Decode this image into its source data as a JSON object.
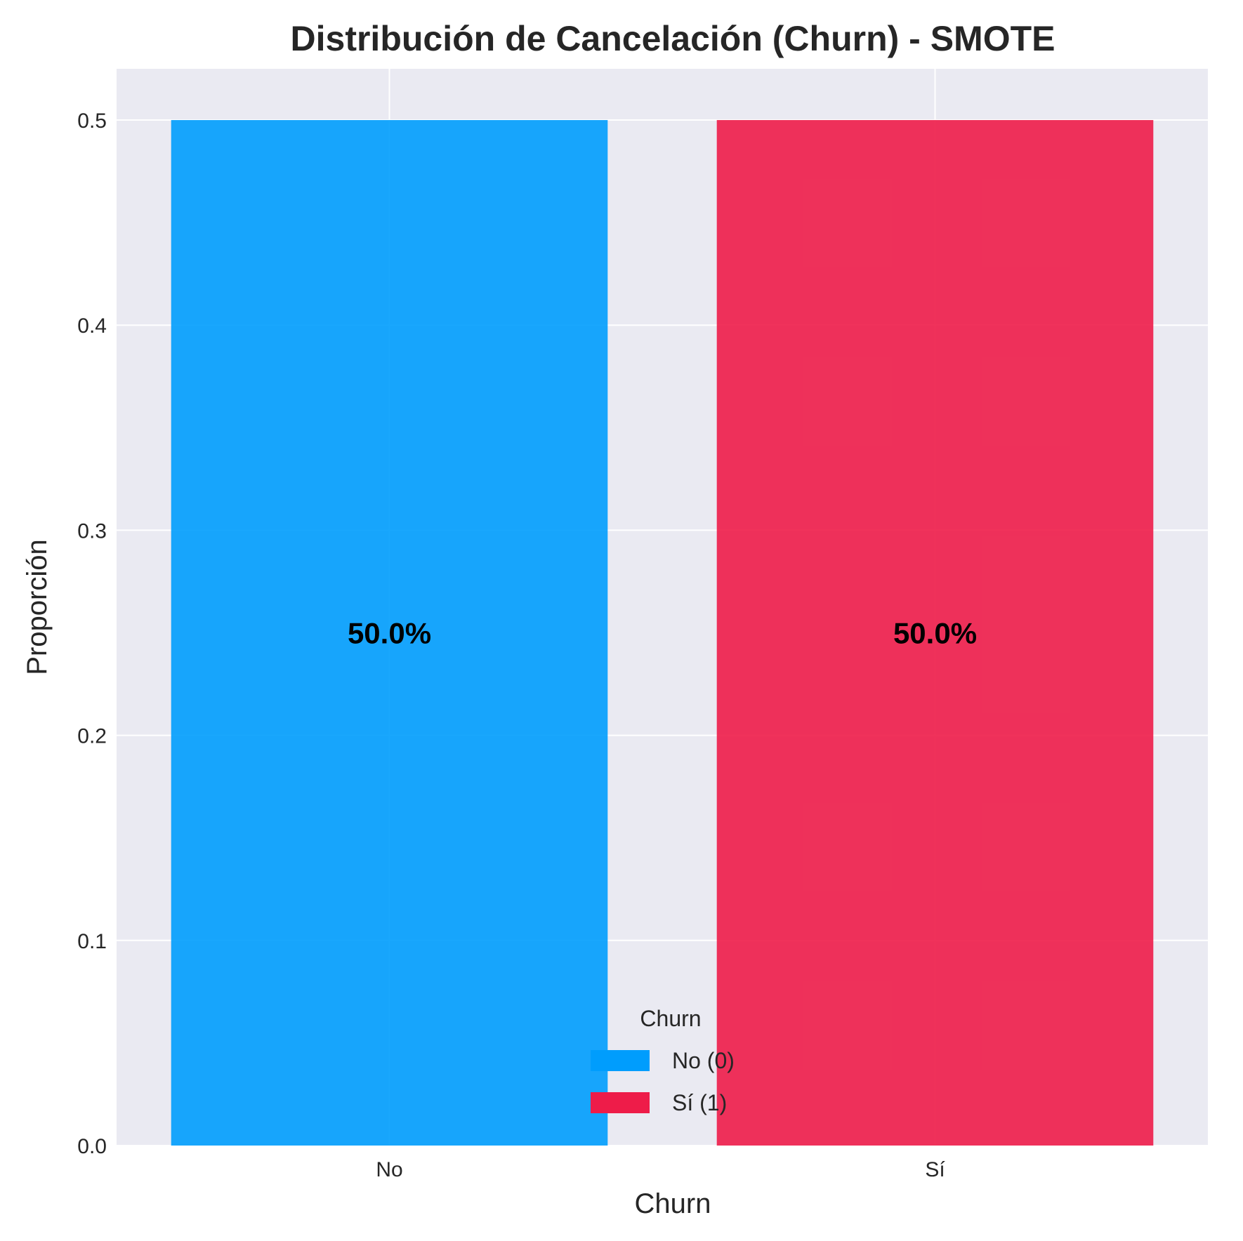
{
  "chart_data": {
    "type": "bar",
    "title": "Distribución de Cancelación (Churn) - SMOTE",
    "xlabel": "Churn",
    "ylabel": "Proporción",
    "categories": [
      "No",
      "Sí"
    ],
    "values": [
      0.5,
      0.5
    ],
    "data_labels": [
      "50.0%",
      "50.0%"
    ],
    "colors": [
      "#009dfd",
      "#ee1c49"
    ],
    "ylim": [
      0,
      0.525
    ],
    "yticks": [
      0.0,
      0.1,
      0.2,
      0.3,
      0.4,
      0.5
    ],
    "ytick_labels": [
      "0.0",
      "0.1",
      "0.2",
      "0.3",
      "0.4",
      "0.5"
    ],
    "grid": true,
    "background": "#eaeaf2",
    "legend": {
      "title": "Churn",
      "placement": "lower-center",
      "entries": [
        {
          "label": "No (0)",
          "color": "#009dfd"
        },
        {
          "label": "Sí (1)",
          "color": "#ee1c49"
        }
      ]
    }
  }
}
